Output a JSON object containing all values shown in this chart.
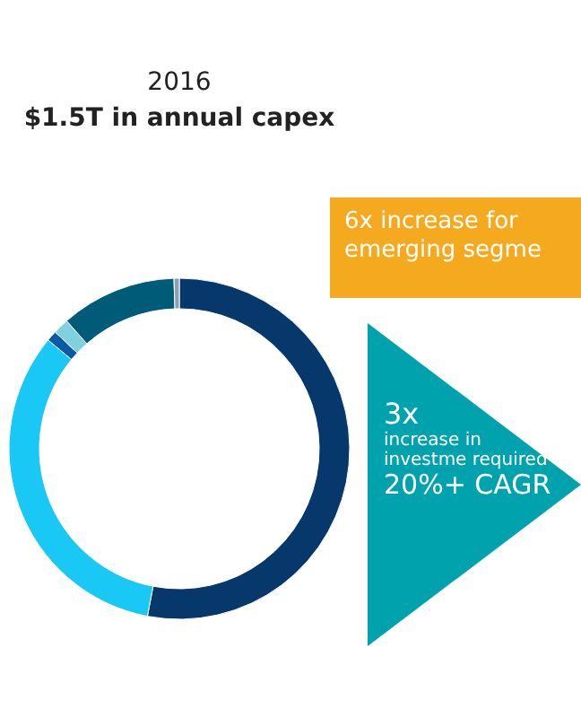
{
  "chart_data": {
    "type": "donut",
    "title": "2016",
    "subtitle": "$1.5T in annual capex",
    "categories": [
      null,
      null,
      null,
      null,
      null,
      null
    ],
    "values": [
      53,
      33,
      1,
      1.5,
      11,
      0.5
    ],
    "colors": [
      "#06386c",
      "#19c8f5",
      "#0a5aa8",
      "#7fd0e0",
      "#005b78",
      "#8aa0b0"
    ],
    "annotations": [
      "6x increase for emerging segme",
      "3x",
      "increase in investme required",
      "20%+ CAGR"
    ]
  }
}
